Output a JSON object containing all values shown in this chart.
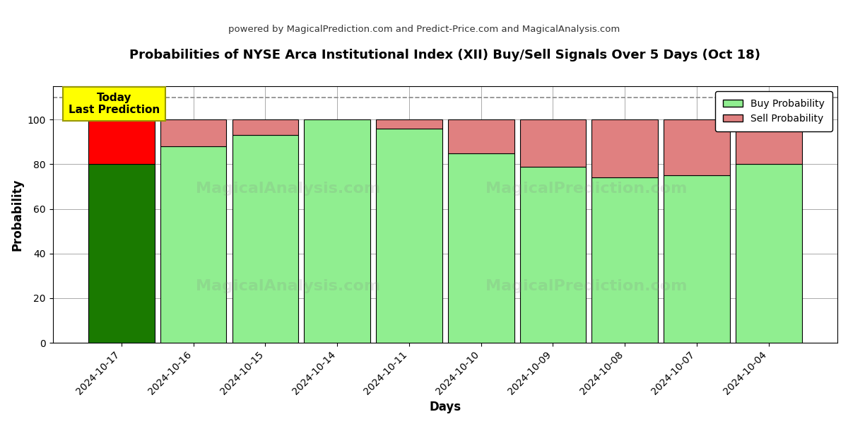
{
  "title": "Probabilities of NYSE Arca Institutional Index (XII) Buy/Sell Signals Over 5 Days (Oct 18)",
  "subtitle": "powered by MagicalPrediction.com and Predict-Price.com and MagicalAnalysis.com",
  "xlabel": "Days",
  "ylabel": "Probability",
  "categories": [
    "2024-10-17",
    "2024-10-16",
    "2024-10-15",
    "2024-10-14",
    "2024-10-11",
    "2024-10-10",
    "2024-10-09",
    "2024-10-08",
    "2024-10-07",
    "2024-10-04"
  ],
  "buy_values": [
    80,
    88,
    93,
    100,
    96,
    85,
    79,
    74,
    75,
    80
  ],
  "sell_values": [
    20,
    12,
    7,
    0,
    4,
    15,
    21,
    26,
    25,
    20
  ],
  "today_buy_color": "#1a7a00",
  "today_sell_color": "#ff0000",
  "buy_color": "#90ee90",
  "sell_color": "#e08080",
  "bar_edge_color": "#000000",
  "background_color": "#ffffff",
  "grid_color": "#aaaaaa",
  "dashed_line_y": 110,
  "ylim": [
    0,
    115
  ],
  "yticks": [
    0,
    20,
    40,
    60,
    80,
    100
  ],
  "today_annotation": "Today\nLast Prediction",
  "annotation_box_color": "#ffff00",
  "legend_buy_label": "Buy Probability",
  "legend_sell_label": "Sell Probability",
  "watermark1_left": "MagicalAnalysis.com",
  "watermark2_right": "MagicalPrediction.com"
}
